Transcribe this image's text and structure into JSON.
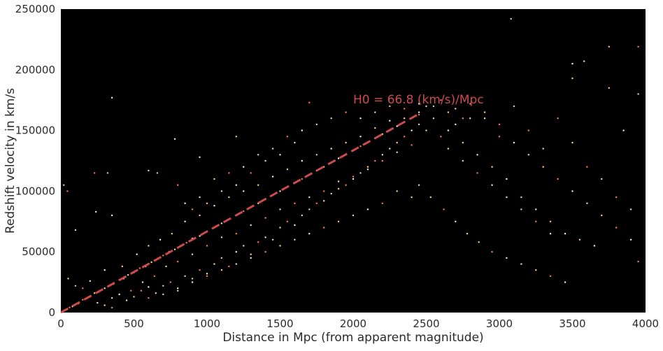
{
  "chart_data": {
    "type": "scatter",
    "title": "",
    "xlabel": "Distance in Mpc (from apparent magnitude)",
    "ylabel": "Redshift velocity in km/s",
    "xlim": [
      0,
      4000
    ],
    "ylim": [
      0,
      250000
    ],
    "xticks": [
      0,
      500,
      1000,
      1500,
      2000,
      2500,
      3000,
      3500,
      4000
    ],
    "yticks": [
      0,
      50000,
      100000,
      150000,
      200000,
      250000
    ],
    "xtick_labels": [
      "0",
      "500",
      "1000",
      "1500",
      "2000",
      "2500",
      "3000",
      "3500",
      "4000"
    ],
    "ytick_labels": [
      "0",
      "50000",
      "100000",
      "150000",
      "200000",
      "250000"
    ],
    "grid": false,
    "plot_background": "#000000",
    "point_colors": [
      "#fff5dc",
      "#f5deb3",
      "#ffd27f",
      "#ff7f50"
    ],
    "fit_line": {
      "slope_km_s_per_mpc": 66.8,
      "x_range": [
        0,
        2450
      ],
      "color": "#cd4b4b",
      "style": "dashed"
    },
    "annotation": {
      "text": "H0 = 66.8 (km/s)/Mpc",
      "x": 2000,
      "y": 175000,
      "color": "#cd4b4b"
    },
    "series": [
      {
        "points": [
          [
            10,
            700
          ],
          [
            25,
            2000
          ],
          [
            40,
            2500
          ],
          [
            60,
            4200
          ],
          [
            80,
            5000
          ],
          [
            100,
            6800
          ],
          [
            120,
            7500
          ],
          [
            150,
            10500
          ],
          [
            180,
            12000
          ],
          [
            200,
            13000
          ],
          [
            230,
            16000
          ],
          [
            260,
            17000
          ],
          [
            300,
            20000
          ],
          [
            330,
            22000
          ],
          [
            360,
            23500
          ],
          [
            400,
            27000
          ],
          [
            430,
            28000
          ],
          [
            460,
            31000
          ],
          [
            500,
            33000
          ],
          [
            540,
            36500
          ],
          [
            580,
            38000
          ],
          [
            620,
            41500
          ],
          [
            660,
            44000
          ],
          [
            700,
            47000
          ],
          [
            740,
            50000
          ],
          [
            780,
            52000
          ],
          [
            820,
            55000
          ],
          [
            860,
            57500
          ],
          [
            900,
            61000
          ],
          [
            950,
            63000
          ],
          [
            1000,
            67000
          ],
          [
            1050,
            70000
          ],
          [
            1100,
            73500
          ],
          [
            1150,
            77000
          ],
          [
            1200,
            80000
          ],
          [
            1250,
            83500
          ],
          [
            1300,
            87000
          ],
          [
            1350,
            90000
          ],
          [
            1400,
            93500
          ],
          [
            1450,
            97000
          ],
          [
            1500,
            100000
          ],
          [
            1550,
            103500
          ],
          [
            1600,
            107000
          ],
          [
            1650,
            110000
          ],
          [
            1700,
            113500
          ],
          [
            1750,
            117000
          ],
          [
            1800,
            120000
          ],
          [
            1850,
            123500
          ],
          [
            1900,
            127000
          ],
          [
            1950,
            130000
          ],
          [
            2000,
            133500
          ],
          [
            2050,
            137000
          ],
          [
            2100,
            140000
          ],
          [
            2150,
            143500
          ],
          [
            2200,
            147000
          ],
          [
            2250,
            150000
          ],
          [
            2300,
            153500
          ],
          [
            2350,
            157000
          ],
          [
            2400,
            160000
          ],
          [
            2450,
            163000
          ],
          [
            300,
            35000
          ],
          [
            350,
            12000
          ],
          [
            420,
            38000
          ],
          [
            480,
            18000
          ],
          [
            520,
            48000
          ],
          [
            560,
            25000
          ],
          [
            600,
            55000
          ],
          [
            640,
            30000
          ],
          [
            680,
            60000
          ],
          [
            720,
            38000
          ],
          [
            760,
            65000
          ],
          [
            800,
            42000
          ],
          [
            850,
            75000
          ],
          [
            900,
            48000
          ],
          [
            950,
            80000
          ],
          [
            1000,
            55000
          ],
          [
            1050,
            88000
          ],
          [
            1100,
            62000
          ],
          [
            1150,
            95000
          ],
          [
            1200,
            65000
          ],
          [
            1250,
            100000
          ],
          [
            1300,
            72000
          ],
          [
            1350,
            105000
          ],
          [
            1400,
            78000
          ],
          [
            1450,
            112000
          ],
          [
            1500,
            85000
          ],
          [
            1550,
            118000
          ],
          [
            1600,
            90000
          ],
          [
            1650,
            125000
          ],
          [
            1700,
            95000
          ],
          [
            1750,
            130000
          ],
          [
            1800,
            100000
          ],
          [
            1850,
            135000
          ],
          [
            1900,
            108000
          ],
          [
            1950,
            140000
          ],
          [
            2000,
            112000
          ],
          [
            2050,
            145000
          ],
          [
            2100,
            118000
          ],
          [
            2150,
            152000
          ],
          [
            2200,
            125000
          ],
          [
            2250,
            158000
          ],
          [
            2300,
            132000
          ],
          [
            2350,
            160000
          ],
          [
            2400,
            138000
          ],
          [
            2450,
            165000
          ],
          [
            2500,
            170000
          ],
          [
            2550,
            160000
          ],
          [
            2600,
            175000
          ],
          [
            2650,
            150000
          ],
          [
            2700,
            168000
          ],
          [
            2750,
            140000
          ],
          [
            2800,
            172000
          ],
          [
            2850,
            130000
          ],
          [
            2900,
            160000
          ],
          [
            2950,
            120000
          ],
          [
            3000,
            145000
          ],
          [
            3050,
            110000
          ],
          [
            3100,
            170000
          ],
          [
            3150,
            95000
          ],
          [
            3200,
            150000
          ],
          [
            3250,
            85000
          ],
          [
            3300,
            135000
          ],
          [
            3350,
            75000
          ],
          [
            3400,
            160000
          ],
          [
            3450,
            65000
          ],
          [
            3500,
            140000
          ],
          [
            3550,
            60000
          ],
          [
            3600,
            120000
          ],
          [
            3650,
            55000
          ],
          [
            3700,
            110000
          ],
          [
            3750,
            185000
          ],
          [
            3800,
            95000
          ],
          [
            3850,
            150000
          ],
          [
            3900,
            85000
          ],
          [
            3950,
            180000
          ],
          [
            3950,
            42000
          ],
          [
            350,
            177000
          ],
          [
            3080,
            242000
          ],
          [
            3750,
            219000
          ],
          [
            3950,
            219000
          ],
          [
            3500,
            205000
          ],
          [
            3580,
            207000
          ],
          [
            3500,
            193000
          ],
          [
            1700,
            173000
          ],
          [
            780,
            143000
          ],
          [
            1200,
            145000
          ],
          [
            320,
            115000
          ],
          [
            230,
            115000
          ],
          [
            350,
            80000
          ],
          [
            100,
            68000
          ],
          [
            20,
            105000
          ],
          [
            45,
            100000
          ],
          [
            240,
            83000
          ],
          [
            600,
            117000
          ],
          [
            660,
            115000
          ],
          [
            800,
            105000
          ],
          [
            950,
            128000
          ],
          [
            50,
            28000
          ],
          [
            100,
            22000
          ],
          [
            150,
            20000
          ],
          [
            200,
            26000
          ],
          [
            250,
            8000
          ],
          [
            300,
            6000
          ],
          [
            350,
            4000
          ],
          [
            400,
            15000
          ],
          [
            450,
            10000
          ],
          [
            500,
            13000
          ],
          [
            550,
            18000
          ],
          [
            600,
            21000
          ],
          [
            650,
            16000
          ],
          [
            700,
            22000
          ],
          [
            750,
            25000
          ],
          [
            800,
            20000
          ],
          [
            850,
            30000
          ],
          [
            900,
            28000
          ],
          [
            950,
            35000
          ],
          [
            1000,
            32000
          ],
          [
            1050,
            40000
          ],
          [
            1100,
            45000
          ],
          [
            1150,
            38000
          ],
          [
            1200,
            50000
          ],
          [
            1250,
            55000
          ],
          [
            1300,
            48000
          ],
          [
            1350,
            58000
          ],
          [
            1400,
            62000
          ],
          [
            1450,
            60000
          ],
          [
            1500,
            70000
          ],
          [
            1550,
            75000
          ],
          [
            1600,
            72000
          ],
          [
            1650,
            80000
          ],
          [
            1700,
            85000
          ],
          [
            1750,
            90000
          ],
          [
            1800,
            92000
          ],
          [
            1850,
            98000
          ],
          [
            1900,
            102000
          ],
          [
            1950,
            105000
          ],
          [
            2000,
            110000
          ],
          [
            2050,
            115000
          ],
          [
            2100,
            120000
          ],
          [
            2150,
            125000
          ],
          [
            2200,
            130000
          ],
          [
            2250,
            135000
          ],
          [
            2300,
            140000
          ],
          [
            2350,
            145000
          ],
          [
            2400,
            150000
          ],
          [
            2450,
            155000
          ],
          [
            2500,
            150000
          ],
          [
            2600,
            145000
          ],
          [
            2700,
            155000
          ],
          [
            2800,
            160000
          ],
          [
            2900,
            165000
          ],
          [
            3000,
            155000
          ],
          [
            3100,
            140000
          ],
          [
            3200,
            130000
          ],
          [
            3300,
            120000
          ],
          [
            3400,
            110000
          ],
          [
            3500,
            100000
          ],
          [
            3600,
            90000
          ],
          [
            3700,
            80000
          ],
          [
            3800,
            70000
          ],
          [
            3900,
            60000
          ],
          [
            2450,
            105000
          ],
          [
            2530,
            95000
          ],
          [
            2620,
            85000
          ],
          [
            2700,
            75000
          ],
          [
            2780,
            65000
          ],
          [
            2860,
            58000
          ],
          [
            2950,
            50000
          ],
          [
            3050,
            45000
          ],
          [
            3150,
            40000
          ],
          [
            3250,
            35000
          ],
          [
            3350,
            30000
          ],
          [
            3450,
            25000
          ],
          [
            2650,
            135000
          ],
          [
            2750,
            125000
          ],
          [
            2850,
            115000
          ],
          [
            2950,
            105000
          ],
          [
            3050,
            95000
          ],
          [
            3150,
            85000
          ],
          [
            3250,
            75000
          ],
          [
            3350,
            65000
          ],
          [
            2300,
            100000
          ],
          [
            2400,
            95000
          ],
          [
            2200,
            90000
          ],
          [
            2100,
            85000
          ],
          [
            2000,
            80000
          ],
          [
            1900,
            75000
          ],
          [
            1800,
            70000
          ],
          [
            1700,
            65000
          ],
          [
            1600,
            60000
          ],
          [
            1500,
            55000
          ],
          [
            1400,
            50000
          ],
          [
            1300,
            45000
          ],
          [
            1200,
            40000
          ],
          [
            1100,
            35000
          ],
          [
            1000,
            30000
          ],
          [
            900,
            25000
          ],
          [
            800,
            18000
          ],
          [
            700,
            15000
          ],
          [
            600,
            12000
          ],
          [
            1500,
            130000
          ],
          [
            1600,
            140000
          ],
          [
            1400,
            125000
          ],
          [
            1300,
            115000
          ],
          [
            1200,
            105000
          ],
          [
            1100,
            100000
          ],
          [
            1000,
            90000
          ],
          [
            900,
            85000
          ],
          [
            850,
            90000
          ],
          [
            950,
            95000
          ],
          [
            1050,
            110000
          ],
          [
            1150,
            115000
          ],
          [
            1250,
            120000
          ],
          [
            1350,
            130000
          ],
          [
            1450,
            135000
          ],
          [
            1550,
            145000
          ],
          [
            1650,
            150000
          ],
          [
            1750,
            155000
          ],
          [
            1850,
            160000
          ],
          [
            1950,
            165000
          ],
          [
            2050,
            160000
          ],
          [
            2150,
            165000
          ],
          [
            2250,
            170000
          ],
          [
            2350,
            168000
          ],
          [
            2450,
            172000
          ],
          [
            2550,
            170000
          ],
          [
            2650,
            165000
          ],
          [
            2750,
            160000
          ]
        ]
      }
    ]
  }
}
